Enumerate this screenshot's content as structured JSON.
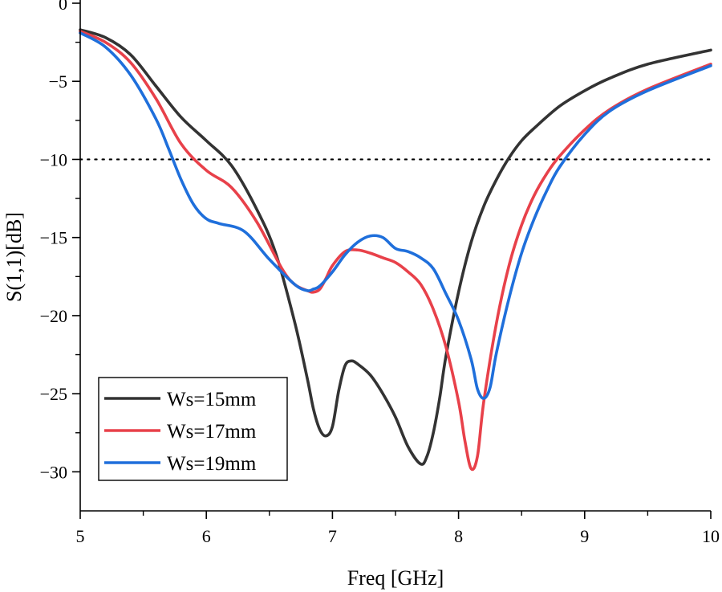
{
  "chart_data": {
    "type": "line",
    "title": "",
    "xlabel": "Freq [GHz]",
    "ylabel": "S(1,1)[dB]",
    "xlim": [
      5,
      10
    ],
    "ylim": [
      -32.5,
      0
    ],
    "xticks": [
      5,
      6,
      7,
      8,
      9,
      10
    ],
    "yticks": [
      0,
      -5,
      -10,
      -15,
      -20,
      -25,
      -30
    ],
    "xtick_labels": [
      "5",
      "6",
      "7",
      "8",
      "9",
      "10"
    ],
    "ytick_labels": [
      "0",
      "−5",
      "−10",
      "−15",
      "−20",
      "−25",
      "−30"
    ],
    "grid": false,
    "legend_position": "bottom-left",
    "reference_line": {
      "y": -10,
      "style": "dotted",
      "color": "#000000"
    },
    "series": [
      {
        "name": "Ws=15mm",
        "color": "#333333",
        "x": [
          5.0,
          5.2,
          5.4,
          5.6,
          5.8,
          6.0,
          6.2,
          6.4,
          6.55,
          6.7,
          6.8,
          6.85,
          6.9,
          6.95,
          7.0,
          7.05,
          7.1,
          7.15,
          7.2,
          7.3,
          7.4,
          7.5,
          7.6,
          7.7,
          7.75,
          7.8,
          7.85,
          7.9,
          8.0,
          8.1,
          8.2,
          8.3,
          8.4,
          8.5,
          8.6,
          8.8,
          9.0,
          9.2,
          9.5,
          10.0
        ],
        "y": [
          -1.7,
          -2.2,
          -3.3,
          -5.3,
          -7.3,
          -8.8,
          -10.4,
          -13.2,
          -16.0,
          -20.4,
          -24.0,
          -26.0,
          -27.3,
          -27.7,
          -27.1,
          -24.8,
          -23.2,
          -22.9,
          -23.1,
          -23.8,
          -25.0,
          -26.5,
          -28.4,
          -29.5,
          -29.0,
          -27.5,
          -25.3,
          -22.6,
          -18.5,
          -15.3,
          -13.0,
          -11.3,
          -9.9,
          -8.8,
          -8.0,
          -6.6,
          -5.6,
          -4.8,
          -3.9,
          -3.0
        ]
      },
      {
        "name": "Ws=17mm",
        "color": "#e8414a",
        "x": [
          5.0,
          5.2,
          5.4,
          5.6,
          5.8,
          6.0,
          6.2,
          6.4,
          6.6,
          6.7,
          6.8,
          6.85,
          6.9,
          6.95,
          7.0,
          7.1,
          7.2,
          7.3,
          7.4,
          7.5,
          7.6,
          7.7,
          7.8,
          7.9,
          8.0,
          8.05,
          8.1,
          8.15,
          8.2,
          8.3,
          8.4,
          8.5,
          8.6,
          8.7,
          8.8,
          9.0,
          9.2,
          9.5,
          10.0
        ],
        "y": [
          -1.8,
          -2.5,
          -3.8,
          -6.1,
          -9.0,
          -10.7,
          -11.8,
          -14.0,
          -17.0,
          -18.0,
          -18.4,
          -18.5,
          -18.3,
          -17.6,
          -16.8,
          -15.9,
          -15.8,
          -16.0,
          -16.3,
          -16.6,
          -17.2,
          -18.0,
          -19.6,
          -22.0,
          -25.5,
          -28.0,
          -29.8,
          -29.0,
          -25.5,
          -20.5,
          -16.8,
          -14.2,
          -12.3,
          -10.9,
          -9.8,
          -8.1,
          -6.8,
          -5.5,
          -3.9
        ]
      },
      {
        "name": "Ws=19mm",
        "color": "#1f6fdb",
        "x": [
          5.0,
          5.2,
          5.4,
          5.6,
          5.7,
          5.8,
          5.9,
          6.0,
          6.1,
          6.3,
          6.5,
          6.7,
          6.8,
          6.85,
          6.9,
          7.0,
          7.1,
          7.2,
          7.3,
          7.4,
          7.5,
          7.6,
          7.7,
          7.8,
          7.9,
          8.0,
          8.1,
          8.15,
          8.2,
          8.25,
          8.3,
          8.4,
          8.5,
          8.6,
          8.7,
          8.8,
          9.0,
          9.2,
          9.5,
          10.0
        ],
        "y": [
          -1.9,
          -2.8,
          -4.6,
          -7.4,
          -9.3,
          -11.3,
          -12.9,
          -13.8,
          -14.1,
          -14.6,
          -16.4,
          -18.0,
          -18.4,
          -18.3,
          -18.1,
          -17.2,
          -16.1,
          -15.3,
          -14.9,
          -15.0,
          -15.7,
          -15.9,
          -16.3,
          -17.0,
          -18.6,
          -20.3,
          -22.8,
          -24.7,
          -25.3,
          -24.6,
          -22.4,
          -18.9,
          -16.0,
          -13.8,
          -12.0,
          -10.5,
          -8.4,
          -6.9,
          -5.6,
          -4.0
        ]
      }
    ]
  }
}
